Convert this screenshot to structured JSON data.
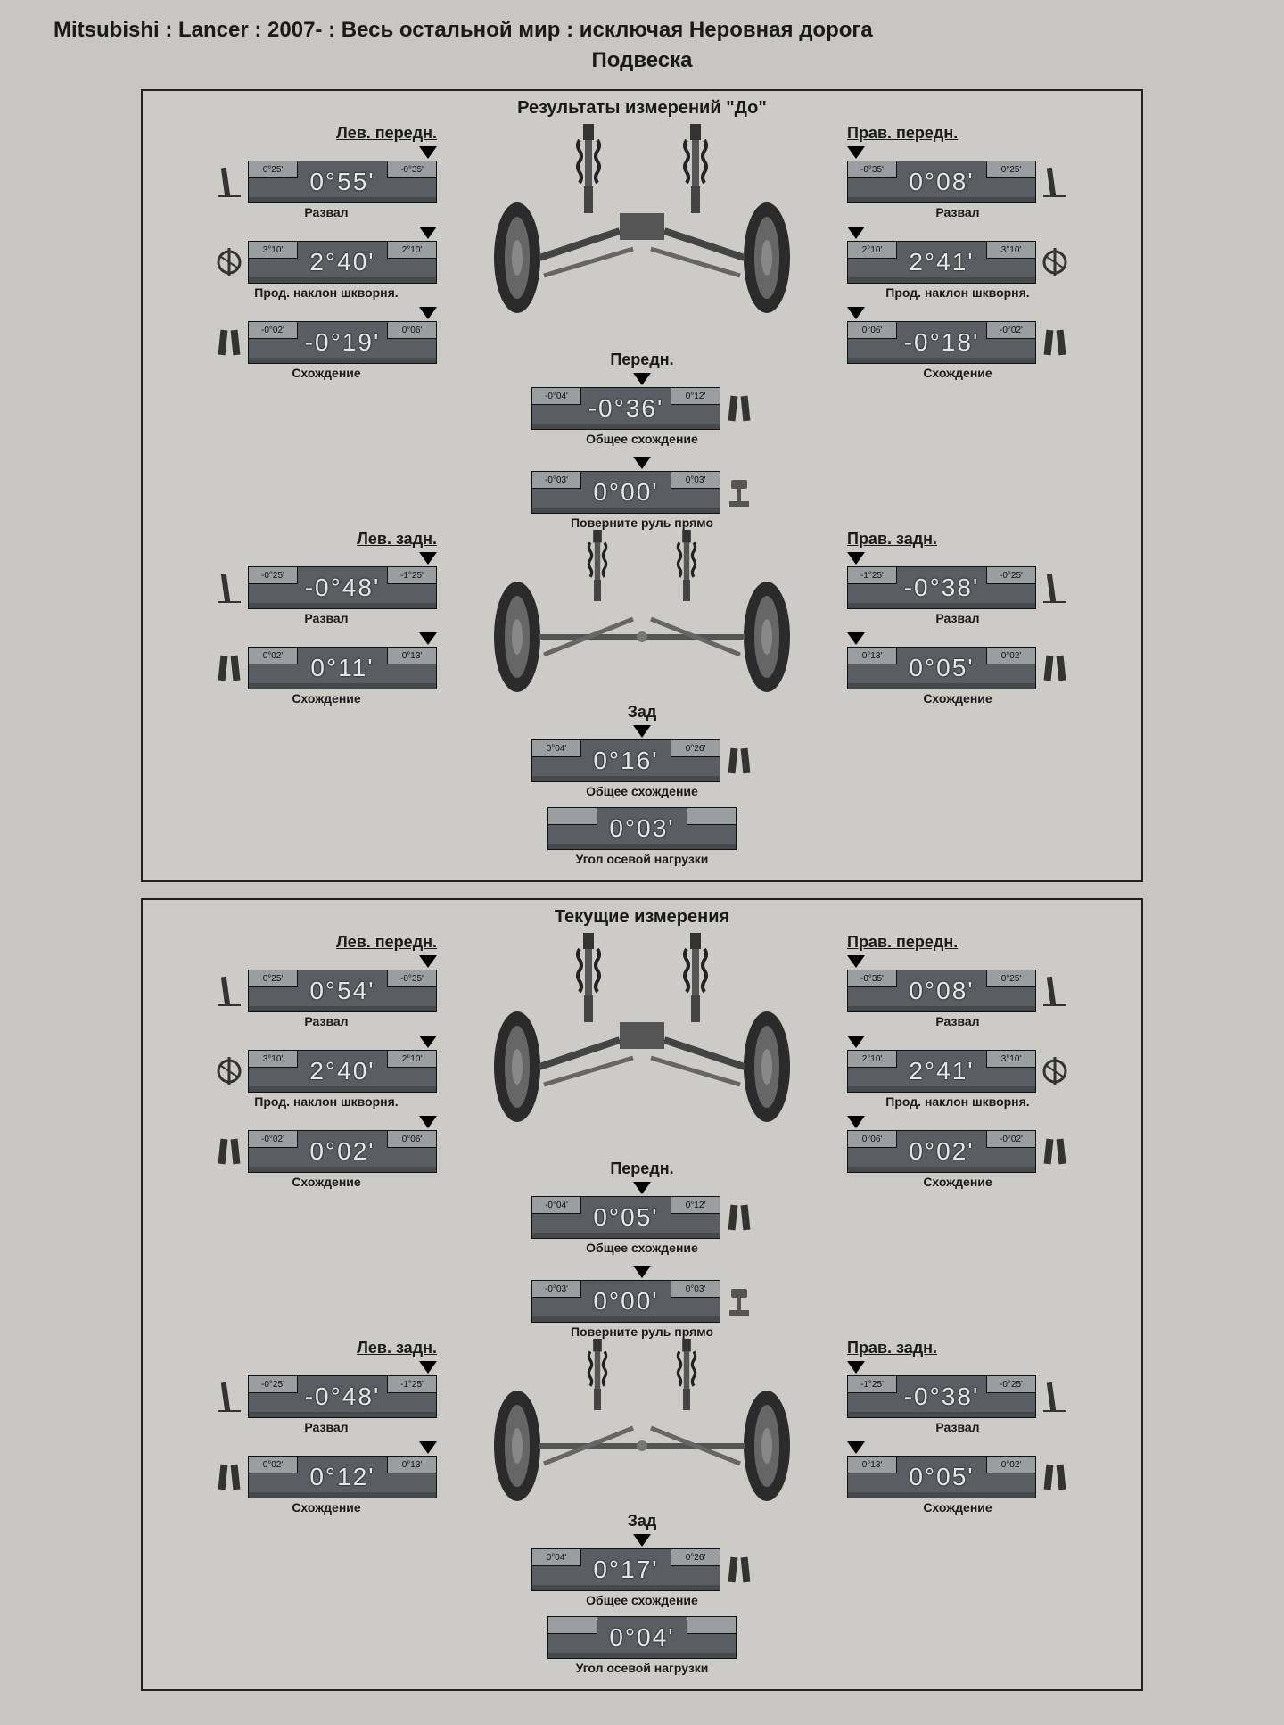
{
  "header_line1": "Mitsubishi : Lancer : 2007- : Весь остальной мир : исключая Неровная дорога",
  "header_line2": "Подвеска",
  "labels": {
    "lf": "Лев. передн.",
    "rf": "Прав. передн.",
    "lr": "Лев. задн.",
    "rr": "Прав. задн.",
    "front_center": "Передн.",
    "rear_center": "Зад",
    "camber": "Развал",
    "caster": "Прод. наклон шкворня.",
    "toe": "Схождение",
    "total_toe": "Общее схождение",
    "steer": "Поверните руль прямо",
    "thrust": "Угол осевой нагрузки"
  },
  "colors": {
    "bg": "#c8c6c2",
    "gauge_bg": "#5a5e62",
    "gauge_text": "#e6e6e6",
    "notch_bg": "#9b9ea0",
    "border": "#222222"
  },
  "panels": [
    {
      "title": "Результаты измерений \"До\"",
      "front": {
        "left": {
          "camber": {
            "lo": "0°25'",
            "hi": "-0°35'",
            "val": "0°55'"
          },
          "caster": {
            "lo": "3°10'",
            "hi": "2°10'",
            "val": "2°40'"
          },
          "toe": {
            "lo": "-0°02'",
            "hi": "0°06'",
            "val": "-0°19'"
          }
        },
        "right": {
          "camber": {
            "lo": "-0°35'",
            "hi": "0°25'",
            "val": "0°08'"
          },
          "caster": {
            "lo": "2°10'",
            "hi": "3°10'",
            "val": "2°41'"
          },
          "toe": {
            "lo": "0°06'",
            "hi": "-0°02'",
            "val": "-0°18'"
          }
        },
        "center": {
          "total_toe": {
            "lo": "-0°04'",
            "hi": "0°12'",
            "val": "-0°36'"
          },
          "steer": {
            "lo": "-0°03'",
            "hi": "0°03'",
            "val": "0°00'"
          }
        }
      },
      "rear": {
        "left": {
          "camber": {
            "lo": "-0°25'",
            "hi": "-1°25'",
            "val": "-0°48'"
          },
          "toe": {
            "lo": "0°02'",
            "hi": "0°13'",
            "val": "0°11'"
          }
        },
        "right": {
          "camber": {
            "lo": "-1°25'",
            "hi": "-0°25'",
            "val": "-0°38'"
          },
          "toe": {
            "lo": "0°13'",
            "hi": "0°02'",
            "val": "0°05'"
          }
        },
        "center": {
          "total_toe": {
            "lo": "0°04'",
            "hi": "0°26'",
            "val": "0°16'"
          },
          "thrust": {
            "lo": "",
            "hi": "",
            "val": "0°03'"
          }
        }
      }
    },
    {
      "title": "Текущие измерения",
      "front": {
        "left": {
          "camber": {
            "lo": "0°25'",
            "hi": "-0°35'",
            "val": "0°54'"
          },
          "caster": {
            "lo": "3°10'",
            "hi": "2°10'",
            "val": "2°40'"
          },
          "toe": {
            "lo": "-0°02'",
            "hi": "0°06'",
            "val": "0°02'"
          }
        },
        "right": {
          "camber": {
            "lo": "-0°35'",
            "hi": "0°25'",
            "val": "0°08'"
          },
          "caster": {
            "lo": "2°10'",
            "hi": "3°10'",
            "val": "2°41'"
          },
          "toe": {
            "lo": "0°06'",
            "hi": "-0°02'",
            "val": "0°02'"
          }
        },
        "center": {
          "total_toe": {
            "lo": "-0°04'",
            "hi": "0°12'",
            "val": "0°05'"
          },
          "steer": {
            "lo": "-0°03'",
            "hi": "0°03'",
            "val": "0°00'"
          }
        }
      },
      "rear": {
        "left": {
          "camber": {
            "lo": "-0°25'",
            "hi": "-1°25'",
            "val": "-0°48'"
          },
          "toe": {
            "lo": "0°02'",
            "hi": "0°13'",
            "val": "0°12'"
          }
        },
        "right": {
          "camber": {
            "lo": "-1°25'",
            "hi": "-0°25'",
            "val": "-0°38'"
          },
          "toe": {
            "lo": "0°13'",
            "hi": "0°02'",
            "val": "0°05'"
          }
        },
        "center": {
          "total_toe": {
            "lo": "0°04'",
            "hi": "0°26'",
            "val": "0°17'"
          },
          "thrust": {
            "lo": "",
            "hi": "",
            "val": "0°04'"
          }
        }
      }
    }
  ]
}
